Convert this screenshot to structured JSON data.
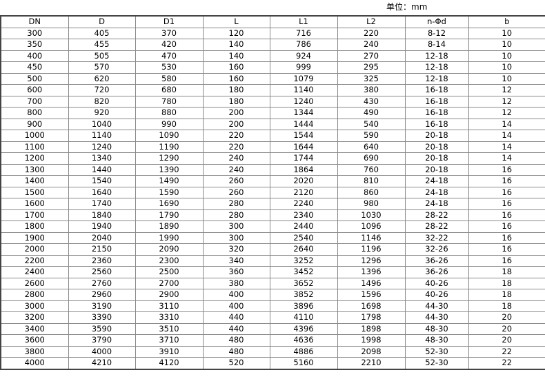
{
  "unit_label": "单位：mm",
  "table": {
    "headers": [
      "DN",
      "D",
      "D1",
      "L",
      "L1",
      "L2",
      "n-Φd",
      "b"
    ],
    "rows": [
      [
        "300",
        "405",
        "370",
        "120",
        "716",
        "220",
        "8-12",
        "10"
      ],
      [
        "350",
        "455",
        "420",
        "140",
        "786",
        "240",
        "8-14",
        "10"
      ],
      [
        "400",
        "505",
        "470",
        "140",
        "924",
        "270",
        "12-18",
        "10"
      ],
      [
        "450",
        "570",
        "530",
        "160",
        "999",
        "295",
        "12-18",
        "10"
      ],
      [
        "500",
        "620",
        "580",
        "160",
        "1079",
        "325",
        "12-18",
        "10"
      ],
      [
        "600",
        "720",
        "680",
        "180",
        "1140",
        "380",
        "16-18",
        "12"
      ],
      [
        "700",
        "820",
        "780",
        "180",
        "1240",
        "430",
        "16-18",
        "12"
      ],
      [
        "800",
        "920",
        "880",
        "200",
        "1344",
        "490",
        "16-18",
        "12"
      ],
      [
        "900",
        "1040",
        "990",
        "200",
        "1444",
        "540",
        "16-18",
        "14"
      ],
      [
        "1000",
        "1140",
        "1090",
        "220",
        "1544",
        "590",
        "20-18",
        "14"
      ],
      [
        "1100",
        "1240",
        "1190",
        "220",
        "1644",
        "640",
        "20-18",
        "14"
      ],
      [
        "1200",
        "1340",
        "1290",
        "240",
        "1744",
        "690",
        "20-18",
        "14"
      ],
      [
        "1300",
        "1440",
        "1390",
        "240",
        "1864",
        "760",
        "20-18",
        "16"
      ],
      [
        "1400",
        "1540",
        "1490",
        "260",
        "2020",
        "810",
        "24-18",
        "16"
      ],
      [
        "1500",
        "1640",
        "1590",
        "260",
        "2120",
        "860",
        "24-18",
        "16"
      ],
      [
        "1600",
        "1740",
        "1690",
        "280",
        "2240",
        "980",
        "24-18",
        "16"
      ],
      [
        "1700",
        "1840",
        "1790",
        "280",
        "2340",
        "1030",
        "28-22",
        "16"
      ],
      [
        "1800",
        "1940",
        "1890",
        "300",
        "2440",
        "1096",
        "28-22",
        "16"
      ],
      [
        "1900",
        "2040",
        "1990",
        "300",
        "2540",
        "1146",
        "32-22",
        "16"
      ],
      [
        "2000",
        "2150",
        "2090",
        "320",
        "2640",
        "1196",
        "32-26",
        "16"
      ],
      [
        "2200",
        "2360",
        "2300",
        "340",
        "3252",
        "1296",
        "36-26",
        "16"
      ],
      [
        "2400",
        "2560",
        "2500",
        "360",
        "3452",
        "1396",
        "36-26",
        "18"
      ],
      [
        "2600",
        "2760",
        "2700",
        "380",
        "3652",
        "1496",
        "40-26",
        "18"
      ],
      [
        "2800",
        "2960",
        "2900",
        "400",
        "3852",
        "1596",
        "40-26",
        "18"
      ],
      [
        "3000",
        "3190",
        "3110",
        "400",
        "3896",
        "1698",
        "44-30",
        "18"
      ],
      [
        "3200",
        "3390",
        "3310",
        "440",
        "4110",
        "1798",
        "44-30",
        "20"
      ],
      [
        "3400",
        "3590",
        "3510",
        "440",
        "4396",
        "1898",
        "48-30",
        "20"
      ],
      [
        "3600",
        "3790",
        "3710",
        "480",
        "4636",
        "1998",
        "48-30",
        "20"
      ],
      [
        "3800",
        "4000",
        "3910",
        "480",
        "4886",
        "2098",
        "52-30",
        "22"
      ],
      [
        "4000",
        "4210",
        "4120",
        "520",
        "5160",
        "2210",
        "52-30",
        "22"
      ]
    ]
  }
}
